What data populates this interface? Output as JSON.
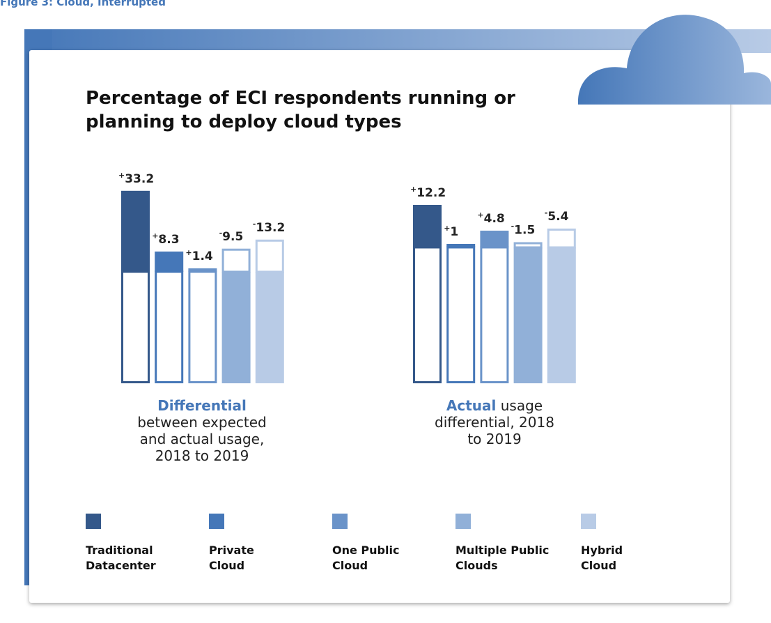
{
  "figure_title": "Figure 3: Cloud, Interrupted",
  "title": "Percentage of ECI respondents running or planning to deploy cloud types",
  "legend": [
    {
      "name": "Traditional Datacenter",
      "color": "#34588a"
    },
    {
      "name": "Private Cloud",
      "color": "#4577b8"
    },
    {
      "name": "One Public Cloud",
      "color": "#6a93c9"
    },
    {
      "name": "Multiple Public Clouds",
      "color": "#91b0d8"
    },
    {
      "name": "Hybrid Cloud",
      "color": "#b8cbe6"
    }
  ],
  "chart_data": [
    {
      "type": "bar",
      "caption_highlight": "Differential",
      "caption_text": "between expected and actual usage, 2018 to 2019",
      "values": [
        33.2,
        8.3,
        1.4,
        -9.5,
        -13.2
      ],
      "value_labels": [
        "+33.2",
        "+8.3",
        "+1.4",
        "-9.5",
        "-13.2"
      ]
    },
    {
      "type": "bar",
      "caption_highlight": "Actual",
      "caption_text": "usage differential, 2018 to 2019",
      "values": [
        12.2,
        1,
        4.8,
        -1.5,
        -5.4
      ],
      "value_labels": [
        "+12.2",
        "+1",
        "+4.8",
        "-1.5",
        "-5.4"
      ]
    }
  ]
}
